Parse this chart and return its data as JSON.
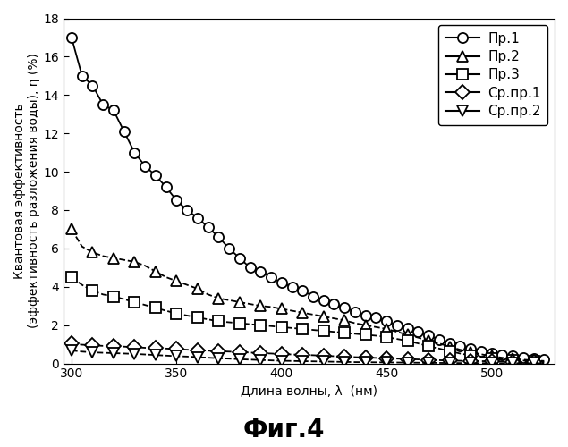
{
  "title": "Фиг.4",
  "xlabel": "Длина волны, λ  (нм)",
  "ylabel": "Квантовая эффективность\n(эффективность разложения воды), η (%)",
  "xlim": [
    296,
    530
  ],
  "ylim": [
    0,
    18
  ],
  "yticks": [
    0,
    2,
    4,
    6,
    8,
    10,
    12,
    14,
    16,
    18
  ],
  "xticks": [
    300,
    350,
    400,
    450,
    500
  ],
  "series": [
    {
      "label": "Пр.1",
      "marker": "o",
      "linestyle": "-",
      "x": [
        300,
        305,
        310,
        315,
        320,
        325,
        330,
        335,
        340,
        345,
        350,
        355,
        360,
        365,
        370,
        375,
        380,
        385,
        390,
        395,
        400,
        405,
        410,
        415,
        420,
        425,
        430,
        435,
        440,
        445,
        450,
        455,
        460,
        465,
        470,
        475,
        480,
        485,
        490,
        495,
        500,
        505,
        510,
        515,
        520,
        525
      ],
      "y": [
        17.0,
        15.0,
        14.5,
        13.5,
        13.2,
        12.1,
        11.0,
        10.3,
        9.8,
        9.2,
        8.5,
        8.0,
        7.6,
        7.1,
        6.6,
        6.0,
        5.5,
        5.0,
        4.8,
        4.5,
        4.2,
        4.0,
        3.8,
        3.5,
        3.3,
        3.1,
        2.9,
        2.7,
        2.5,
        2.4,
        2.2,
        2.0,
        1.85,
        1.65,
        1.45,
        1.25,
        1.05,
        0.9,
        0.78,
        0.65,
        0.55,
        0.45,
        0.38,
        0.32,
        0.27,
        0.22
      ],
      "markevery": 1
    },
    {
      "label": "Пр.2",
      "marker": "^",
      "linestyle": "--",
      "x": [
        300,
        305,
        310,
        315,
        320,
        325,
        330,
        335,
        340,
        345,
        350,
        355,
        360,
        365,
        370,
        375,
        380,
        385,
        390,
        395,
        400,
        405,
        410,
        415,
        420,
        425,
        430,
        435,
        440,
        445,
        450,
        455,
        460,
        465,
        470,
        475,
        480,
        485,
        490,
        495,
        500,
        505,
        510,
        515,
        520,
        525
      ],
      "y": [
        7.0,
        6.1,
        5.8,
        5.6,
        5.5,
        5.4,
        5.3,
        5.1,
        4.8,
        4.5,
        4.3,
        4.1,
        3.9,
        3.6,
        3.4,
        3.3,
        3.2,
        3.1,
        3.0,
        2.95,
        2.85,
        2.75,
        2.65,
        2.55,
        2.45,
        2.35,
        2.25,
        2.1,
        2.0,
        1.9,
        1.8,
        1.65,
        1.5,
        1.35,
        1.2,
        1.05,
        0.88,
        0.72,
        0.6,
        0.48,
        0.38,
        0.3,
        0.24,
        0.2,
        0.16,
        0.13
      ],
      "markevery": 2
    },
    {
      "label": "Пр.3",
      "marker": "s",
      "linestyle": "--",
      "x": [
        300,
        305,
        310,
        315,
        320,
        325,
        330,
        335,
        340,
        345,
        350,
        355,
        360,
        365,
        370,
        375,
        380,
        385,
        390,
        395,
        400,
        405,
        410,
        415,
        420,
        425,
        430,
        435,
        440,
        445,
        450,
        455,
        460,
        465,
        470,
        475,
        480,
        485,
        490,
        495,
        500,
        505,
        510,
        515,
        520,
        525
      ],
      "y": [
        4.5,
        4.1,
        3.8,
        3.6,
        3.5,
        3.35,
        3.2,
        3.05,
        2.9,
        2.75,
        2.6,
        2.5,
        2.4,
        2.3,
        2.2,
        2.15,
        2.1,
        2.05,
        2.0,
        1.95,
        1.9,
        1.85,
        1.8,
        1.75,
        1.7,
        1.65,
        1.6,
        1.55,
        1.5,
        1.45,
        1.38,
        1.28,
        1.18,
        1.05,
        0.9,
        0.78,
        0.64,
        0.52,
        0.42,
        0.34,
        0.27,
        0.22,
        0.18,
        0.15,
        0.12,
        0.1
      ],
      "markevery": 2
    },
    {
      "label": "Ср.пр.1",
      "marker": "D",
      "linestyle": "--",
      "x": [
        300,
        305,
        310,
        315,
        320,
        325,
        330,
        335,
        340,
        345,
        350,
        355,
        360,
        365,
        370,
        375,
        380,
        385,
        390,
        395,
        400,
        405,
        410,
        415,
        420,
        425,
        430,
        435,
        440,
        445,
        450,
        455,
        460,
        465,
        470,
        475,
        480,
        485,
        490,
        495,
        500,
        505,
        510,
        515,
        520,
        525
      ],
      "y": [
        1.05,
        0.98,
        0.95,
        0.92,
        0.9,
        0.88,
        0.85,
        0.82,
        0.8,
        0.78,
        0.75,
        0.72,
        0.7,
        0.67,
        0.64,
        0.62,
        0.6,
        0.57,
        0.54,
        0.52,
        0.49,
        0.47,
        0.45,
        0.43,
        0.4,
        0.38,
        0.36,
        0.33,
        0.31,
        0.29,
        0.27,
        0.25,
        0.23,
        0.21,
        0.19,
        0.17,
        0.15,
        0.14,
        0.13,
        0.12,
        0.11,
        0.1,
        0.09,
        0.08,
        0.07,
        0.06
      ],
      "markevery": 2
    },
    {
      "label": "Ср.пр.2",
      "marker": "v",
      "linestyle": "--",
      "x": [
        300,
        305,
        310,
        315,
        320,
        325,
        330,
        335,
        340,
        345,
        350,
        355,
        360,
        365,
        370,
        375,
        380,
        385,
        390,
        395,
        400,
        405,
        410,
        415,
        420,
        425,
        430,
        435,
        440,
        445,
        450,
        455,
        460,
        465,
        470,
        475,
        480,
        485,
        490,
        495,
        500,
        505,
        510,
        515,
        520,
        525
      ],
      "y": [
        0.68,
        0.62,
        0.58,
        0.56,
        0.54,
        0.52,
        0.5,
        0.47,
        0.44,
        0.41,
        0.38,
        0.36,
        0.33,
        0.3,
        0.27,
        0.25,
        0.22,
        0.2,
        0.18,
        0.16,
        0.14,
        0.13,
        0.12,
        0.11,
        0.1,
        0.09,
        0.08,
        0.07,
        0.065,
        0.06,
        0.055,
        0.05,
        0.045,
        0.04,
        0.035,
        0.03,
        0.025,
        0.02,
        0.02,
        0.015,
        0.01,
        0.01,
        0.01,
        0.008,
        0.006,
        0.005
      ],
      "markevery": 2
    }
  ],
  "marker_size": 8,
  "line_color": "black",
  "background_color": "#ffffff",
  "legend_loc": "upper right",
  "title_fontsize": 20,
  "axis_fontsize": 10,
  "tick_fontsize": 10,
  "legend_fontsize": 11
}
